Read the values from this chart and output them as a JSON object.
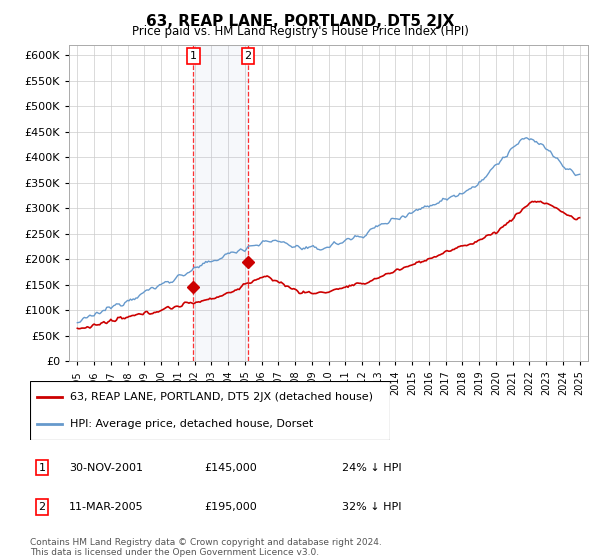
{
  "title": "63, REAP LANE, PORTLAND, DT5 2JX",
  "subtitle": "Price paid vs. HM Land Registry's House Price Index (HPI)",
  "ylim": [
    0,
    620000
  ],
  "yticks": [
    0,
    50000,
    100000,
    150000,
    200000,
    250000,
    300000,
    350000,
    400000,
    450000,
    500000,
    550000,
    600000
  ],
  "x_start_year": 1995,
  "x_end_year": 2025,
  "hpi_color": "#6699cc",
  "price_color": "#cc0000",
  "marker_color": "#cc0000",
  "transaction1_date": "30-NOV-2001",
  "transaction1_price": 145000,
  "transaction1_pct": "24%",
  "transaction1_x": 2001.92,
  "transaction2_date": "11-MAR-2005",
  "transaction2_price": 195000,
  "transaction2_pct": "32%",
  "transaction2_x": 2005.2,
  "legend_label1": "63, REAP LANE, PORTLAND, DT5 2JX (detached house)",
  "legend_label2": "HPI: Average price, detached house, Dorset",
  "footer": "Contains HM Land Registry data © Crown copyright and database right 2024.\nThis data is licensed under the Open Government Licence v3.0.",
  "background_color": "#ffffff",
  "grid_color": "#cccccc"
}
